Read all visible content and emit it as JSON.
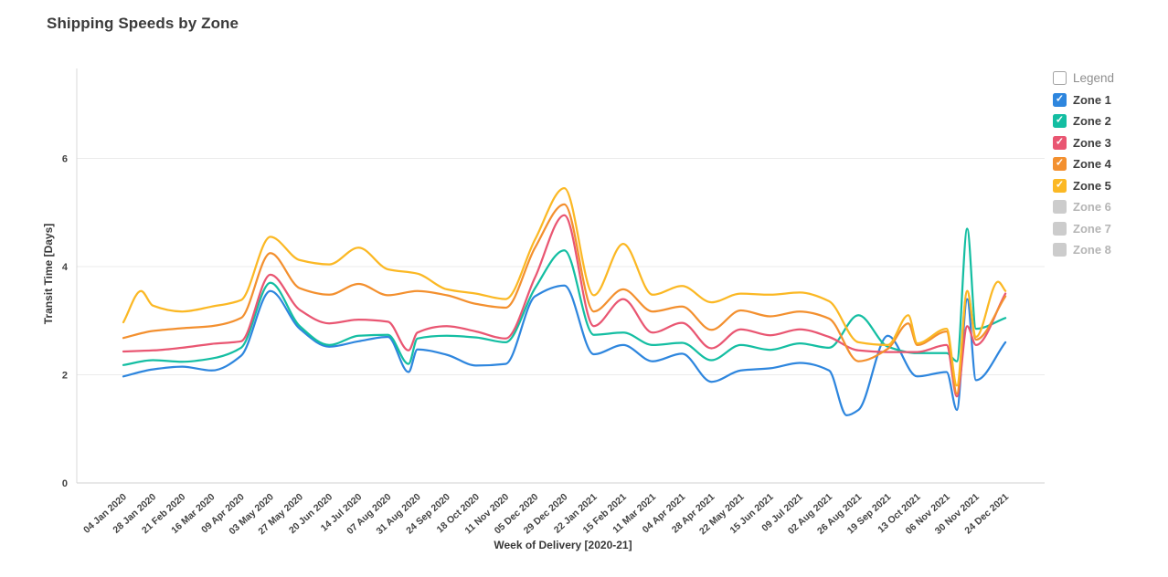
{
  "title": "Shipping Speeds by Zone",
  "axes": {
    "x_title": "Week of Delivery [2020-21]",
    "y_title": "Transit Time [Days]",
    "y_ticks": [
      0,
      2,
      4,
      6
    ]
  },
  "legend": {
    "header": "Legend",
    "check_glyph": "✓",
    "items": [
      {
        "label": "Zone 1",
        "color": "#2E86DE",
        "checked": true
      },
      {
        "label": "Zone 2",
        "color": "#14BEA2",
        "checked": true
      },
      {
        "label": "Zone 3",
        "color": "#E95672",
        "checked": true
      },
      {
        "label": "Zone 4",
        "color": "#F3902F",
        "checked": true
      },
      {
        "label": "Zone 5",
        "color": "#FBB824",
        "checked": true
      },
      {
        "label": "Zone 6",
        "color": "#CCCCCC",
        "checked": false
      },
      {
        "label": "Zone 7",
        "color": "#CCCCCC",
        "checked": false
      },
      {
        "label": "Zone 8",
        "color": "#CCCCCC",
        "checked": false
      }
    ]
  },
  "chart_data": {
    "type": "line",
    "title": "Shipping Speeds by Zone",
    "xlabel": "Week of Delivery [2020-21]",
    "ylabel": "Transit Time [Days]",
    "ylim": [
      0,
      7.6
    ],
    "y_ticks": [
      0,
      2,
      4,
      6
    ],
    "grid": "horizontal",
    "legend_position": "right",
    "x_encoding": "category_index (fractional indices are between labeled weeks)",
    "categories": [
      "04 Jan 2020",
      "28 Jan 2020",
      "21 Feb 2020",
      "16 Mar 2020",
      "09 Apr 2020",
      "03 May 2020",
      "27 May 2020",
      "20 Jun 2020",
      "14 Jul 2020",
      "07 Aug 2020",
      "31 Aug 2020",
      "24 Sep 2020",
      "18 Oct 2020",
      "11 Nov 2020",
      "05 Dec 2020",
      "29 Dec 2020",
      "22 Jan 2021",
      "15 Feb 2021",
      "11 Mar 2021",
      "04 Apr 2021",
      "28 Apr 2021",
      "22 May 2021",
      "15 Jun 2021",
      "09 Jul 2021",
      "02 Aug 2021",
      "26 Aug 2021",
      "19 Sep 2021",
      "13 Oct 2021",
      "06 Nov 2021",
      "30 Nov 2021",
      "24 Dec 2021"
    ],
    "series": [
      {
        "name": "Zone 1",
        "color": "#2E86DE",
        "points": [
          [
            0,
            1.97
          ],
          [
            1,
            2.1
          ],
          [
            2,
            2.15
          ],
          [
            3,
            2.08
          ],
          [
            4,
            2.35
          ],
          [
            5,
            3.55
          ],
          [
            6,
            2.85
          ],
          [
            7,
            2.52
          ],
          [
            8,
            2.62
          ],
          [
            9,
            2.7
          ],
          [
            9.7,
            2.05
          ],
          [
            10,
            2.47
          ],
          [
            11,
            2.37
          ],
          [
            12,
            2.17
          ],
          [
            13,
            2.2
          ],
          [
            14,
            3.45
          ],
          [
            15,
            3.65
          ],
          [
            16,
            2.38
          ],
          [
            17,
            2.55
          ],
          [
            18,
            2.25
          ],
          [
            19,
            2.39
          ],
          [
            20,
            1.87
          ],
          [
            21,
            2.08
          ],
          [
            22,
            2.12
          ],
          [
            23,
            2.22
          ],
          [
            24,
            2.08
          ],
          [
            24.6,
            1.25
          ],
          [
            25,
            1.35
          ],
          [
            26,
            2.72
          ],
          [
            27,
            1.97
          ],
          [
            28,
            2.05
          ],
          [
            28.35,
            1.35
          ],
          [
            28.7,
            3.4
          ],
          [
            29,
            1.9
          ],
          [
            30,
            2.6
          ]
        ]
      },
      {
        "name": "Zone 2",
        "color": "#14BEA2",
        "points": [
          [
            0,
            2.18
          ],
          [
            1,
            2.27
          ],
          [
            2,
            2.24
          ],
          [
            3,
            2.3
          ],
          [
            4,
            2.5
          ],
          [
            5,
            3.7
          ],
          [
            6,
            2.9
          ],
          [
            7,
            2.55
          ],
          [
            8,
            2.72
          ],
          [
            9,
            2.74
          ],
          [
            9.7,
            2.2
          ],
          [
            10,
            2.67
          ],
          [
            11,
            2.72
          ],
          [
            12,
            2.69
          ],
          [
            13,
            2.6
          ],
          [
            14,
            3.6
          ],
          [
            15,
            4.3
          ],
          [
            16,
            2.74
          ],
          [
            17,
            2.78
          ],
          [
            18,
            2.55
          ],
          [
            19,
            2.59
          ],
          [
            20,
            2.27
          ],
          [
            21,
            2.55
          ],
          [
            22,
            2.46
          ],
          [
            23,
            2.58
          ],
          [
            24,
            2.5
          ],
          [
            25,
            3.1
          ],
          [
            26,
            2.52
          ],
          [
            27,
            2.4
          ],
          [
            28,
            2.4
          ],
          [
            28.35,
            2.25
          ],
          [
            28.7,
            4.7
          ],
          [
            29,
            2.85
          ],
          [
            30,
            3.05
          ]
        ]
      },
      {
        "name": "Zone 3",
        "color": "#E95672",
        "points": [
          [
            0,
            2.43
          ],
          [
            1,
            2.45
          ],
          [
            2,
            2.5
          ],
          [
            3,
            2.57
          ],
          [
            4,
            2.62
          ],
          [
            5,
            3.85
          ],
          [
            6,
            3.2
          ],
          [
            7,
            2.95
          ],
          [
            8,
            3.02
          ],
          [
            9,
            2.98
          ],
          [
            9.7,
            2.45
          ],
          [
            10,
            2.78
          ],
          [
            11,
            2.9
          ],
          [
            12,
            2.8
          ],
          [
            13,
            2.67
          ],
          [
            14,
            3.8
          ],
          [
            15,
            4.95
          ],
          [
            16,
            2.9
          ],
          [
            17,
            3.4
          ],
          [
            18,
            2.78
          ],
          [
            19,
            2.96
          ],
          [
            20,
            2.49
          ],
          [
            21,
            2.84
          ],
          [
            22,
            2.73
          ],
          [
            23,
            2.84
          ],
          [
            24,
            2.7
          ],
          [
            25,
            2.45
          ],
          [
            26,
            2.42
          ],
          [
            27,
            2.42
          ],
          [
            28,
            2.55
          ],
          [
            28.35,
            1.6
          ],
          [
            28.7,
            2.9
          ],
          [
            29,
            2.55
          ],
          [
            30,
            3.5
          ]
        ]
      },
      {
        "name": "Zone 4",
        "color": "#F3902F",
        "points": [
          [
            0,
            2.68
          ],
          [
            1,
            2.81
          ],
          [
            2,
            2.86
          ],
          [
            3,
            2.9
          ],
          [
            4,
            3.05
          ],
          [
            5,
            4.25
          ],
          [
            6,
            3.6
          ],
          [
            7,
            3.48
          ],
          [
            8,
            3.68
          ],
          [
            9,
            3.47
          ],
          [
            10,
            3.55
          ],
          [
            11,
            3.47
          ],
          [
            12,
            3.31
          ],
          [
            13,
            3.24
          ],
          [
            14,
            4.35
          ],
          [
            15,
            5.15
          ],
          [
            16,
            3.17
          ],
          [
            17,
            3.58
          ],
          [
            18,
            3.17
          ],
          [
            19,
            3.26
          ],
          [
            20,
            2.83
          ],
          [
            21,
            3.19
          ],
          [
            22,
            3.08
          ],
          [
            23,
            3.17
          ],
          [
            24,
            3.04
          ],
          [
            25,
            2.25
          ],
          [
            26,
            2.48
          ],
          [
            26.7,
            2.95
          ],
          [
            27,
            2.55
          ],
          [
            28,
            2.8
          ],
          [
            28.35,
            1.65
          ],
          [
            28.7,
            3.55
          ],
          [
            29,
            2.65
          ],
          [
            30,
            3.45
          ]
        ]
      },
      {
        "name": "Zone 5",
        "color": "#FBB824",
        "points": [
          [
            0,
            2.97
          ],
          [
            0.6,
            3.55
          ],
          [
            1,
            3.28
          ],
          [
            2,
            3.17
          ],
          [
            3,
            3.26
          ],
          [
            4,
            3.38
          ],
          [
            5,
            4.55
          ],
          [
            6,
            4.12
          ],
          [
            7,
            4.04
          ],
          [
            8,
            4.35
          ],
          [
            9,
            3.95
          ],
          [
            10,
            3.87
          ],
          [
            11,
            3.58
          ],
          [
            12,
            3.5
          ],
          [
            13,
            3.4
          ],
          [
            14,
            4.5
          ],
          [
            15,
            5.45
          ],
          [
            16,
            3.47
          ],
          [
            17,
            4.42
          ],
          [
            18,
            3.48
          ],
          [
            19,
            3.64
          ],
          [
            20,
            3.34
          ],
          [
            21,
            3.5
          ],
          [
            22,
            3.48
          ],
          [
            23,
            3.52
          ],
          [
            24,
            3.36
          ],
          [
            25,
            2.6
          ],
          [
            26,
            2.55
          ],
          [
            26.7,
            3.1
          ],
          [
            27,
            2.58
          ],
          [
            28,
            2.85
          ],
          [
            28.35,
            1.8
          ],
          [
            28.7,
            3.55
          ],
          [
            29,
            2.7
          ],
          [
            29.75,
            3.72
          ],
          [
            30,
            3.55
          ]
        ]
      }
    ],
    "hidden_series": [
      "Zone 6",
      "Zone 7",
      "Zone 8"
    ]
  }
}
